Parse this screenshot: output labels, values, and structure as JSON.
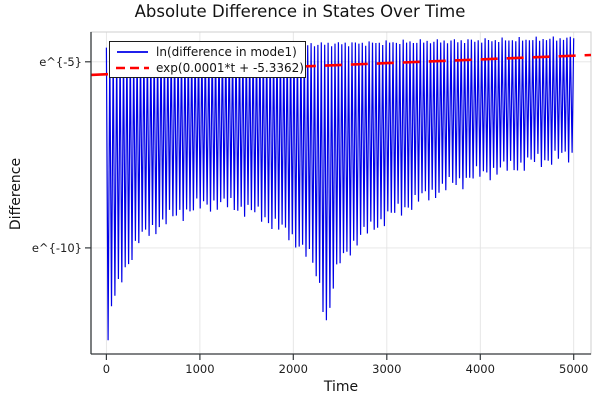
{
  "chart_data": {
    "type": "line",
    "title": "Absolute Difference in States Over Time",
    "xlabel": "Time",
    "ylabel": "Difference",
    "x_ticks": [
      0,
      1000,
      2000,
      3000,
      4000,
      5000
    ],
    "y_ticks": [
      {
        "label": "e^{-5}",
        "value": -5
      },
      {
        "label": "e^{-10}",
        "value": -10
      }
    ],
    "xlim": [
      -165,
      5185
    ],
    "ylim": [
      -12.85,
      -4.2
    ],
    "grid": true,
    "legend_position": "top-left",
    "series": [
      {
        "name": "ln(difference in mode1)",
        "color": "#0000e8",
        "style": "solid",
        "description": "rapid oscillation between a slowly rising upper envelope and a beating lower envelope with deep notches near t=30 and t=2360 (log scale)",
        "fast_period": 36.5,
        "t_range": [
          0,
          5000
        ],
        "top_envelope": [
          [
            0,
            -4.62
          ],
          [
            150,
            -4.68
          ],
          [
            400,
            -4.67
          ],
          [
            800,
            -4.63
          ],
          [
            1200,
            -4.6
          ],
          [
            1600,
            -4.57
          ],
          [
            2000,
            -4.55
          ],
          [
            2400,
            -4.52
          ],
          [
            2800,
            -4.5
          ],
          [
            3200,
            -4.47
          ],
          [
            3600,
            -4.45
          ],
          [
            4000,
            -4.43
          ],
          [
            4400,
            -4.41
          ],
          [
            4700,
            -4.39
          ],
          [
            5000,
            -4.37
          ]
        ],
        "bottom_envelope": [
          [
            0,
            -12.8
          ],
          [
            20,
            -12.6
          ],
          [
            45,
            -11.65
          ],
          [
            100,
            -11.25
          ],
          [
            160,
            -10.8
          ],
          [
            240,
            -10.33
          ],
          [
            340,
            -9.8
          ],
          [
            460,
            -9.55
          ],
          [
            620,
            -9.28
          ],
          [
            800,
            -9.05
          ],
          [
            1000,
            -8.88
          ],
          [
            1150,
            -8.8
          ],
          [
            1320,
            -8.85
          ],
          [
            1480,
            -8.95
          ],
          [
            1650,
            -9.12
          ],
          [
            1850,
            -9.45
          ],
          [
            2050,
            -9.85
          ],
          [
            2200,
            -10.35
          ],
          [
            2290,
            -11.1
          ],
          [
            2360,
            -12.05
          ],
          [
            2430,
            -11.0
          ],
          [
            2500,
            -10.35
          ],
          [
            2620,
            -9.95
          ],
          [
            2760,
            -9.6
          ],
          [
            2950,
            -9.25
          ],
          [
            3150,
            -8.97
          ],
          [
            3400,
            -8.62
          ],
          [
            3700,
            -8.28
          ],
          [
            4000,
            -8.02
          ],
          [
            4300,
            -7.84
          ],
          [
            4600,
            -7.67
          ],
          [
            4800,
            -7.58
          ],
          [
            5000,
            -7.51
          ]
        ]
      },
      {
        "name": "exp(0.0001*t + -5.3362)",
        "color": "#ff0000",
        "style": "dashed",
        "slope": 0.0001,
        "intercept": -5.3362
      }
    ]
  }
}
